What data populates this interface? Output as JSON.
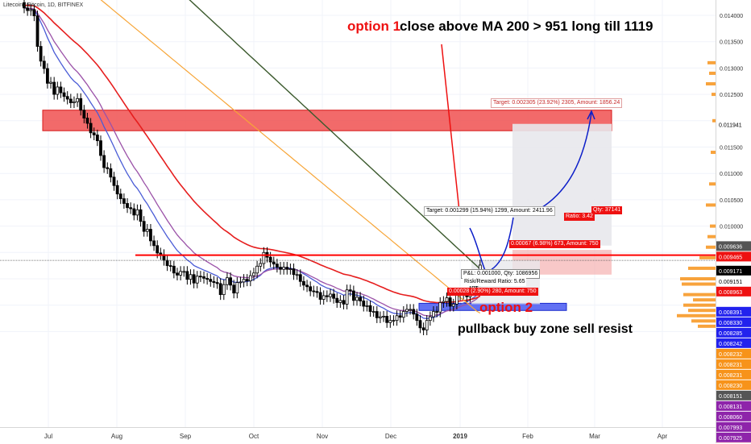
{
  "symbol": "Litecoin / Bitcoin, 1D, BITFINEX",
  "annotations": {
    "option1_label": "option 1",
    "option1_text": "close above MA 200 > 951 long till 1119",
    "option2_label": "option 2",
    "option2_text": "pullback buy zone sell resist",
    "long_target": "Target: 0.002305 (23.92%) 2305, Amount: 1856.24",
    "mid_target": "Target: 0.001299 (15.94%) 1299, Amount: 2411.96",
    "mid_stop": "0.00067 (6.98%) 673, Amount: 750",
    "pnl": "P&L: 0.001000, Qty: 1086956",
    "rr": "Risk/Reward Ratio: 5.65",
    "stop2": "0.00028 (2.90%) 280, Amount: 750",
    "hidden_qty": "Qty: 37141",
    "hidden_rr": "Ratio: 3.42"
  },
  "colors": {
    "resistance_zone": "#f05050",
    "buy_zone": "#3b4ef0",
    "resistance_line": "#ff0000",
    "ma_red": "#e61e1e",
    "ma_orange": "#f7a537",
    "ma_dark": "#3c5a2e",
    "ma_blue": "#4a5cd6",
    "ma_purple": "#9b52a8",
    "bull_candle": "#ffffff",
    "bear_candle": "#000000"
  },
  "chart_data": {
    "type": "candlestick",
    "title": "Litecoin / Bitcoin, 1D, BITFINEX",
    "x_ticks": [
      "Jul",
      "Aug",
      "Sep",
      "Oct",
      "Nov",
      "Dec",
      "2019",
      "Feb",
      "Mar",
      "Apr"
    ],
    "y_range": [
      0.0079,
      0.0144
    ],
    "y_ticks": [
      "0.014000",
      "0.013500",
      "0.013000",
      "0.012500",
      "0.011500",
      "0.011000",
      "0.010500",
      "0.010000",
      "0.009450"
    ],
    "price_labels": [
      {
        "text": "0.011941",
        "value": 0.011941,
        "bg": "#ffffff",
        "fg": "#000000"
      },
      {
        "text": "0.009636",
        "value": 0.009636,
        "bg": "#555555",
        "fg": "#ffffff"
      },
      {
        "text": "0.009465",
        "value": 0.009465,
        "bg": "#ee1111",
        "fg": "#ffffff"
      },
      {
        "text": "0.009171",
        "value": 0.009171,
        "bg": "#000000",
        "fg": "#ffffff"
      },
      {
        "text": "0.009151",
        "value": 0.009151,
        "bg": "#ffffff",
        "fg": "#000000"
      },
      {
        "text": "0.008963",
        "value": 0.008963,
        "bg": "#ee1111",
        "fg": "#ffffff"
      },
      {
        "text": "0.008391",
        "value": 0.008391,
        "bg": "#2222ee",
        "fg": "#ffffff"
      },
      {
        "text": "0.008330",
        "value": 0.00833,
        "bg": "#2222ee",
        "fg": "#ffffff"
      },
      {
        "text": "0.008285",
        "value": 0.008285,
        "bg": "#2222ee",
        "fg": "#ffffff"
      },
      {
        "text": "0.008242",
        "value": 0.008242,
        "bg": "#2222ee",
        "fg": "#ffffff"
      },
      {
        "text": "0.008232",
        "value": 0.008232,
        "bg": "#f7931a",
        "fg": "#ffffff"
      },
      {
        "text": "0.008231",
        "value": 0.008231,
        "bg": "#f7931a",
        "fg": "#ffffff"
      },
      {
        "text": "0.008231",
        "value": 0.008231,
        "bg": "#f7931a",
        "fg": "#ffffff"
      },
      {
        "text": "0.008230",
        "value": 0.00823,
        "bg": "#f7931a",
        "fg": "#ffffff"
      },
      {
        "text": "0.008151",
        "value": 0.008151,
        "bg": "#555555",
        "fg": "#ffffff"
      },
      {
        "text": "0.008131",
        "value": 0.008131,
        "bg": "#8e24aa",
        "fg": "#ffffff"
      },
      {
        "text": "0.008060",
        "value": 0.00806,
        "bg": "#8e24aa",
        "fg": "#ffffff"
      },
      {
        "text": "0.007993",
        "value": 0.007993,
        "bg": "#8e24aa",
        "fg": "#ffffff"
      },
      {
        "text": "0.007925",
        "value": 0.007925,
        "bg": "#8e24aa",
        "fg": "#ffffff"
      },
      {
        "text": "0.007934",
        "value": 0.007934,
        "bg": "#ee1111",
        "fg": "#ffffff"
      }
    ],
    "resistance_zone": [
      0.01181,
      0.0122
    ],
    "resistance_line": 0.00945,
    "current_price": 0.00935,
    "buy_zone": [
      0.00843,
      0.00852
    ],
    "long_target_value": 0.01194,
    "ma_200": 0.0093,
    "series_close": [
      0.01414,
      0.01409,
      0.01411,
      0.01399,
      0.01341,
      0.01313,
      0.01299,
      0.01271,
      0.01273,
      0.0125,
      0.01264,
      0.01253,
      0.01246,
      0.01241,
      0.01234,
      0.01236,
      0.01242,
      0.0122,
      0.01205,
      0.01195,
      0.01177,
      0.01173,
      0.01162,
      0.01134,
      0.01111,
      0.01109,
      0.01093,
      0.01077,
      0.01061,
      0.01052,
      0.01043,
      0.01035,
      0.01033,
      0.01021,
      0.01031,
      0.01009,
      0.0099,
      0.00994,
      0.00972,
      0.00963,
      0.00949,
      0.00946,
      0.00935,
      0.00925,
      0.00924,
      0.00911,
      0.00907,
      0.00914,
      0.00914,
      0.00899,
      0.00908,
      0.00892,
      0.00905,
      0.00904,
      0.00901,
      0.00899,
      0.00895,
      0.00893,
      0.00891,
      0.0087,
      0.00889,
      0.00902,
      0.00888,
      0.00873,
      0.00893,
      0.00894,
      0.00899,
      0.00896,
      0.00906,
      0.00911,
      0.00924,
      0.00929,
      0.0095,
      0.00941,
      0.00932,
      0.00928,
      0.00922,
      0.00918,
      0.00922,
      0.00918,
      0.00919,
      0.00908,
      0.00908,
      0.00895,
      0.00888,
      0.00885,
      0.00877,
      0.00876,
      0.00874,
      0.00861,
      0.00868,
      0.00866,
      0.00871,
      0.00863,
      0.00855,
      0.00859,
      0.00852,
      0.00879,
      0.00877,
      0.00859,
      0.00865,
      0.00858,
      0.00848,
      0.00849,
      0.00838,
      0.00838,
      0.00826,
      0.00828,
      0.00829,
      0.00817,
      0.00821,
      0.00821,
      0.0083,
      0.00827,
      0.00838,
      0.00842,
      0.00842,
      0.00833,
      0.00821,
      0.00807,
      0.00803,
      0.00821,
      0.00828,
      0.00838,
      0.00837,
      0.00855,
      0.00857,
      0.00864,
      0.00848,
      0.00852,
      0.00869,
      0.00872,
      0.00871,
      0.00866,
      0.00882,
      0.00886,
      0.00896,
      0.00926
    ]
  }
}
